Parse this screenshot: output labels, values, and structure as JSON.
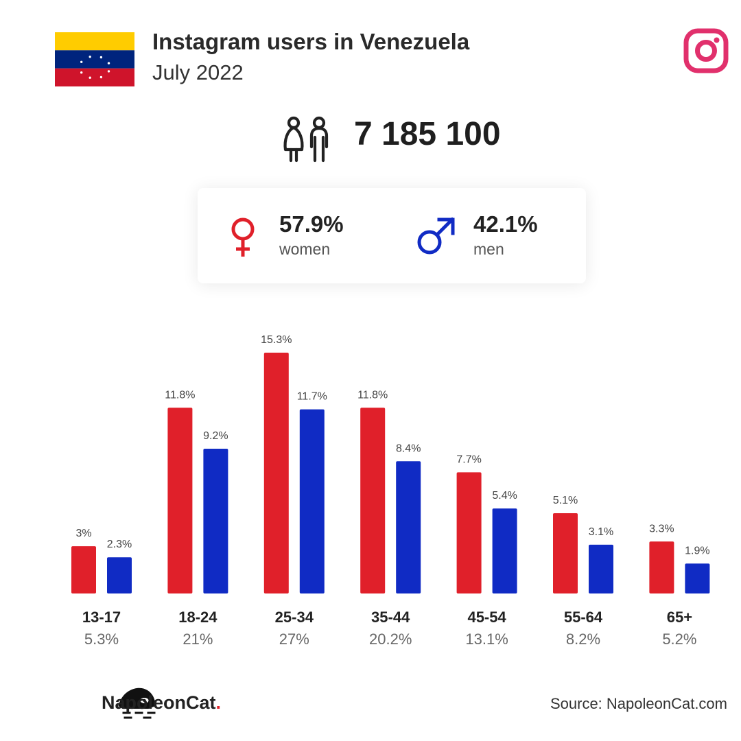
{
  "header": {
    "title": "Instagram users in Venezuela",
    "subtitle": "July 2022",
    "flag_colors": [
      "#FFCC00",
      "#00247D",
      "#CF142B"
    ],
    "flag_icon": "venezuela-flag-icon",
    "logo_icon": "instagram-logo-icon",
    "logo_color": "#E1306C"
  },
  "total": {
    "value": "7 185 100",
    "icon": "people-icon"
  },
  "gender": {
    "women": {
      "pct": "57.9%",
      "label": "women",
      "icon": "female-symbol-icon",
      "color": "#E0202A"
    },
    "men": {
      "pct": "42.1%",
      "label": "men",
      "icon": "male-symbol-icon",
      "color": "#102BC4"
    }
  },
  "chart_data": {
    "type": "bar",
    "categories": [
      "13-17",
      "18-24",
      "25-34",
      "35-44",
      "45-54",
      "55-64",
      "65+"
    ],
    "category_totals": [
      "5.3%",
      "21%",
      "27%",
      "20.2%",
      "13.1%",
      "8.2%",
      "5.2%"
    ],
    "series": [
      {
        "color": "#E0202A",
        "values": [
          3,
          11.8,
          15.3,
          11.8,
          7.7,
          5.1,
          3.3
        ],
        "labels": [
          "3%",
          "11.8%",
          "15.3%",
          "11.8%",
          "7.7%",
          "5.1%",
          "3.3%"
        ]
      },
      {
        "color": "#102BC4",
        "values": [
          2.3,
          9.2,
          11.7,
          8.4,
          5.4,
          3.1,
          1.9
        ],
        "labels": [
          "2.3%",
          "9.2%",
          "11.7%",
          "8.4%",
          "5.4%",
          "3.1%",
          "1.9%"
        ]
      }
    ],
    "ylim": [
      0,
      15.3
    ],
    "grid": false,
    "legend": "none"
  },
  "footer": {
    "brand": "NapoleonCat",
    "brand_dot": ".",
    "brand_icon": "napoleoncat-logo-icon",
    "source": "Source: NapoleonCat.com"
  }
}
